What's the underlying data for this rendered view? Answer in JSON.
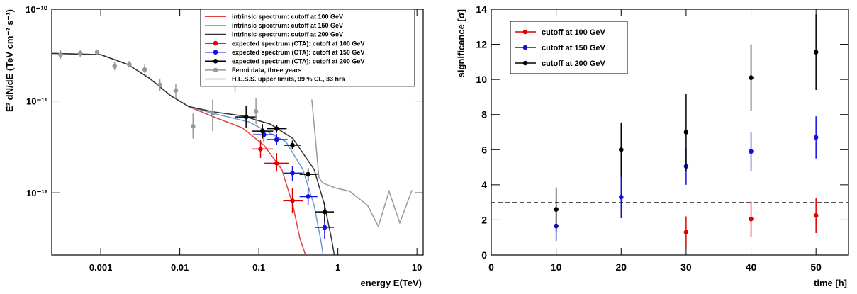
{
  "chart_data": [
    {
      "type": "line",
      "xlabel": "energy E(TeV)",
      "ylabel": "E² dN/dE (TeV cm⁻² s⁻¹)",
      "xlog": true,
      "ylog": true,
      "xlim": [
        0.00024,
        12
      ],
      "ylim": [
        2.1e-13,
        1e-10
      ],
      "xticks": [
        0.001,
        0.01,
        0.1,
        1,
        10
      ],
      "yticks": [
        {
          "value": 1e-12,
          "label": "10⁻¹²"
        },
        {
          "value": 1e-11,
          "label": "10⁻¹¹"
        },
        {
          "value": 1e-10,
          "label": "10⁻¹⁰"
        }
      ],
      "legend": "upper right",
      "series": [
        {
          "name": "intrinsic spectrum: cutoff at 100 GeV",
          "color": "#e04040",
          "mode": "line",
          "x": [
            0.00024,
            0.001,
            0.0022,
            0.0041,
            0.0077,
            0.013,
            0.027,
            0.062,
            0.116,
            0.195,
            0.27,
            0.33,
            0.39
          ],
          "values": [
            3.3e-11,
            3.2e-11,
            2.5e-11,
            1.78e-11,
            1.14e-11,
            8.7e-12,
            6.7e-12,
            5.1e-12,
            3.3e-12,
            1.8e-12,
            7.3e-13,
            3.2e-13,
            2.1e-13
          ]
        },
        {
          "name": "intrinsic spectrum: cutoff at 150 GeV",
          "color": "#6a9bd0",
          "mode": "line",
          "x": [
            0.00024,
            0.001,
            0.0022,
            0.0041,
            0.0077,
            0.013,
            0.027,
            0.076,
            0.22,
            0.36,
            0.5,
            0.61,
            0.65
          ],
          "values": [
            3.3e-11,
            3.2e-11,
            2.5e-11,
            1.78e-11,
            1.14e-11,
            8.7e-12,
            7.3e-12,
            5.9e-12,
            3.6e-12,
            1.8e-12,
            7.3e-13,
            3e-13,
            2.1e-13
          ]
        },
        {
          "name": "intrinsic spectrum: cutoff at 200 GeV",
          "color": "#333333",
          "mode": "line",
          "x": [
            0.00024,
            0.001,
            0.0022,
            0.0041,
            0.0077,
            0.013,
            0.027,
            0.062,
            0.14,
            0.27,
            0.5,
            0.68,
            0.84,
            0.9
          ],
          "values": [
            3.3e-11,
            3.2e-11,
            2.5e-11,
            1.78e-11,
            1.14e-11,
            8.7e-12,
            7.6e-12,
            6.9e-12,
            5.6e-12,
            3.9e-12,
            1.8e-12,
            7.3e-13,
            3e-13,
            2.1e-13
          ]
        },
        {
          "name": "expected spectrum (CTA): cutoff at 100 GeV",
          "color": "#e00000",
          "mode": "markers",
          "x": [
            0.105,
            0.168,
            0.266
          ],
          "values": [
            3e-12,
            2.1e-12,
            8.2e-13
          ],
          "xlow": [
            0.081,
            0.118,
            0.203
          ],
          "xhigh": [
            0.152,
            0.24,
            0.364
          ],
          "ylow": [
            2.4e-12,
            1.7e-12,
            6.1e-13
          ],
          "yhigh": [
            3.8e-12,
            2.7e-12,
            1.13e-12
          ]
        },
        {
          "name": "expected spectrum (CTA): cutoff at 150 GeV",
          "color": "#1010e0",
          "mode": "markers",
          "x": [
            0.116,
            0.168,
            0.266,
            0.42,
            0.68
          ],
          "values": [
            4.3e-12,
            3.8e-12,
            1.64e-12,
            9.1e-13,
            4.2e-13
          ],
          "xlow": [
            0.085,
            0.126,
            0.207,
            0.328,
            0.52
          ],
          "xhigh": [
            0.155,
            0.23,
            0.356,
            0.55,
            0.89
          ],
          "ylow": [
            3.6e-12,
            3.3e-12,
            1.35e-12,
            7.4e-13,
            3.1e-13
          ],
          "yhigh": [
            5.1e-12,
            4.4e-12,
            1.96e-12,
            1.11e-12,
            5.5e-13
          ]
        },
        {
          "name": "expected spectrum (CTA): cutoff at 200 GeV",
          "color": "#000000",
          "mode": "markers",
          "x": [
            0.069,
            0.111,
            0.168,
            0.266,
            0.42,
            0.68
          ],
          "values": [
            6.7e-12,
            4.7e-12,
            5e-12,
            3.3e-12,
            1.59e-12,
            6.2e-13
          ],
          "xlow": [
            0.05,
            0.081,
            0.126,
            0.207,
            0.328,
            0.52
          ],
          "xhigh": [
            0.094,
            0.152,
            0.225,
            0.342,
            0.55,
            0.89
          ],
          "ylow": [
            5.1e-12,
            3.9e-12,
            4.5e-12,
            3e-12,
            1.35e-12,
            4.8e-13
          ],
          "yhigh": [
            8.8e-12,
            5.6e-12,
            5.5e-12,
            3.7e-12,
            1.86e-12,
            7.9e-13
          ]
        },
        {
          "name": "Fermi data, three years",
          "color": "#999999",
          "mode": "markers",
          "x": [
            0.00031,
            0.00055,
            0.0009,
            0.0015,
            0.0023,
            0.0036,
            0.0056,
            0.0089,
            0.0147,
            0.026,
            0.05,
            0.092
          ],
          "values": [
            3.2e-11,
            3.3e-11,
            3.4e-11,
            2.4e-11,
            2.5e-11,
            2.2e-11,
            1.5e-11,
            1.3e-11,
            5.3e-12,
            7.3e-12,
            1.7e-11,
            7.7e-12
          ],
          "ylow": [
            2.88e-11,
            3.04e-11,
            3.15e-11,
            2.17e-11,
            2.33e-11,
            2.02e-11,
            1.29e-11,
            1.06e-11,
            3.9e-12,
            4.7e-12,
            1.25e-11,
            5.6e-12
          ],
          "yhigh": [
            3.56e-11,
            3.63e-11,
            3.63e-11,
            2.64e-11,
            2.73e-11,
            2.5e-11,
            1.72e-11,
            1.55e-11,
            7.3e-12,
            1.04e-11,
            2.25e-11,
            1.08e-11
          ]
        },
        {
          "name": "H.E.S.S. upper limits, 99 % CL, 33 hrs",
          "color": "#999999",
          "mode": "line",
          "x": [
            0.468,
            0.575,
            0.64,
            0.93,
            1.41,
            2.37,
            3.25,
            4.44,
            6.07,
            8.65
          ],
          "values": [
            1.04e-11,
            1.48e-12,
            1.28e-12,
            1.13e-12,
            1.04e-12,
            7.3e-13,
            4.3e-13,
            1.04e-12,
            4.7e-13,
            1.07e-12
          ]
        }
      ]
    },
    {
      "type": "scatter",
      "xlabel": "time [h]",
      "ylabel": "significance [σ]",
      "xlim": [
        0,
        55
      ],
      "ylim": [
        0,
        14
      ],
      "xticks": [
        0,
        10,
        20,
        30,
        40,
        50
      ],
      "yticks": [
        0,
        2,
        4,
        6,
        8,
        10,
        12,
        14
      ],
      "hline": 3,
      "legend": "upper left",
      "series": [
        {
          "name": "cutoff at 100 GeV",
          "color": "#e00000",
          "x": [
            30,
            40,
            50
          ],
          "values": [
            1.3,
            2.05,
            2.25
          ],
          "errors": [
            0.9,
            1.0,
            1.0
          ]
        },
        {
          "name": "cutoff at 150 GeV",
          "color": "#1010e0",
          "x": [
            10,
            20,
            30,
            40,
            50
          ],
          "values": [
            1.65,
            3.3,
            5.05,
            5.9,
            6.7
          ],
          "errors": [
            0.85,
            1.2,
            1.05,
            1.1,
            1.2
          ]
        },
        {
          "name": "cutoff at 200 GeV",
          "color": "#000000",
          "x": [
            10,
            20,
            30,
            40,
            50
          ],
          "values": [
            2.6,
            6.0,
            7.0,
            10.1,
            11.55
          ],
          "errors": [
            1.25,
            1.55,
            2.2,
            1.9,
            2.15
          ]
        }
      ]
    }
  ]
}
